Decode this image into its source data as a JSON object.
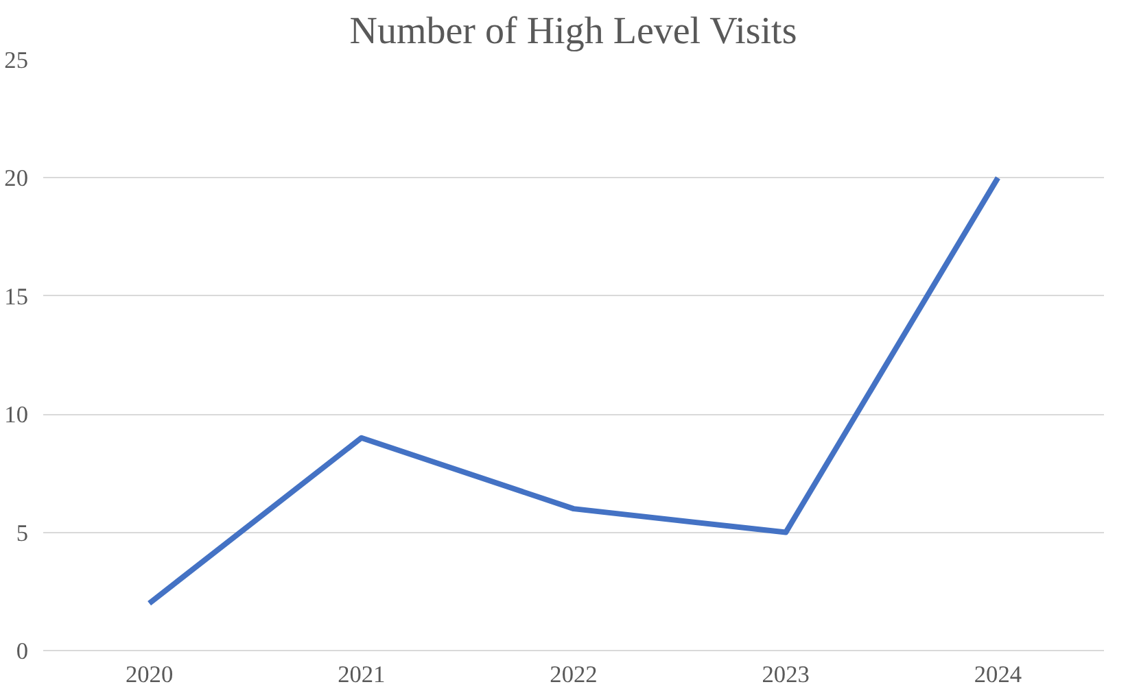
{
  "chart_data": {
    "type": "line",
    "title": "Number of High Level Visits",
    "categories": [
      "2020",
      "2021",
      "2022",
      "2023",
      "2024"
    ],
    "series": [
      {
        "color": "#4472c4",
        "values": [
          2,
          9,
          6,
          5,
          20
        ]
      }
    ],
    "ylim": [
      0,
      25
    ],
    "yticks": [
      0,
      5,
      10,
      15,
      20,
      25
    ],
    "grid": "y",
    "marker": "none",
    "line_style": "solid"
  }
}
